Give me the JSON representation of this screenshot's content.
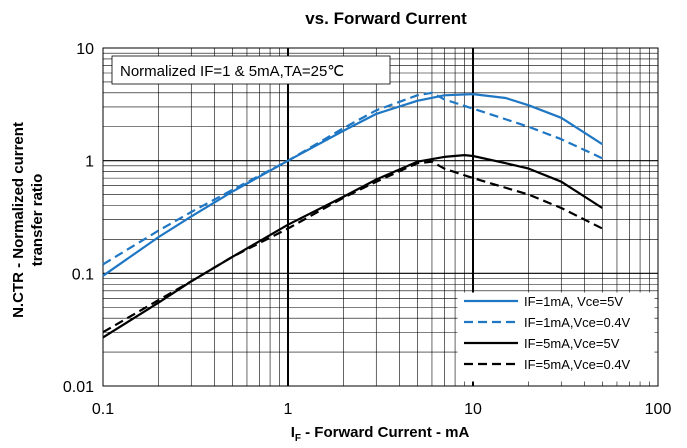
{
  "chart_data": {
    "type": "line",
    "title": "vs. Forward Current",
    "ylabel_line1": "N.CTR - Normalized current",
    "ylabel_line2": "transfer ratio",
    "xlabel_main": "I",
    "xlabel_sub": "F",
    "xlabel_rest": " - Forward Current - mA",
    "annotation": "Normalized IF=1 & 5mA,TA=25℃",
    "x_scale": "log",
    "y_scale": "log",
    "xlim": [
      0.1,
      100
    ],
    "ylim": [
      0.01,
      10
    ],
    "x_ticks": [
      {
        "value": 0.1,
        "label": "0.1"
      },
      {
        "value": 1,
        "label": "1"
      },
      {
        "value": 10,
        "label": "10"
      },
      {
        "value": 100,
        "label": "100"
      }
    ],
    "y_ticks": [
      {
        "value": 10,
        "label": "10"
      },
      {
        "value": 1,
        "label": "1"
      },
      {
        "value": 0.1,
        "label": "0.1"
      },
      {
        "value": 0.01,
        "label": "0.01"
      }
    ],
    "grid": true,
    "legend_position": "bottom-right",
    "colors": {
      "blue": "#1f77c4",
      "black": "#000000"
    },
    "series": [
      {
        "name": "IF=1mA, Vce=5V",
        "color": "#1f77c4",
        "dash": "solid",
        "points": [
          [
            0.1,
            0.095
          ],
          [
            0.2,
            0.21
          ],
          [
            0.3,
            0.32
          ],
          [
            0.5,
            0.53
          ],
          [
            1,
            1.0
          ],
          [
            2,
            1.85
          ],
          [
            3,
            2.6
          ],
          [
            5,
            3.4
          ],
          [
            7,
            3.8
          ],
          [
            10,
            3.9
          ],
          [
            15,
            3.6
          ],
          [
            20,
            3.1
          ],
          [
            30,
            2.4
          ],
          [
            50,
            1.4
          ]
        ]
      },
      {
        "name": "IF=1mA,Vce=0.4V",
        "color": "#1f77c4",
        "dash": "dashed",
        "points": [
          [
            0.1,
            0.12
          ],
          [
            0.2,
            0.24
          ],
          [
            0.3,
            0.35
          ],
          [
            0.5,
            0.55
          ],
          [
            1,
            1.0
          ],
          [
            2,
            1.95
          ],
          [
            3,
            2.8
          ],
          [
            5,
            3.8
          ],
          [
            6,
            4.0
          ],
          [
            7,
            3.5
          ],
          [
            10,
            2.9
          ],
          [
            20,
            2.0
          ],
          [
            30,
            1.55
          ],
          [
            50,
            1.05
          ]
        ]
      },
      {
        "name": "IF=5mA,Vce=5V",
        "color": "#000000",
        "dash": "solid",
        "points": [
          [
            0.1,
            0.027
          ],
          [
            0.2,
            0.055
          ],
          [
            0.3,
            0.085
          ],
          [
            0.5,
            0.14
          ],
          [
            1,
            0.27
          ],
          [
            2,
            0.48
          ],
          [
            3,
            0.68
          ],
          [
            5,
            0.98
          ],
          [
            7,
            1.08
          ],
          [
            9,
            1.12
          ],
          [
            10,
            1.1
          ],
          [
            15,
            0.95
          ],
          [
            20,
            0.85
          ],
          [
            30,
            0.65
          ],
          [
            50,
            0.38
          ]
        ]
      },
      {
        "name": "IF=5mA,Vce=0.4V",
        "color": "#000000",
        "dash": "dashed",
        "points": [
          [
            0.1,
            0.03
          ],
          [
            0.2,
            0.058
          ],
          [
            0.3,
            0.085
          ],
          [
            0.5,
            0.14
          ],
          [
            1,
            0.25
          ],
          [
            2,
            0.47
          ],
          [
            3,
            0.65
          ],
          [
            5,
            0.95
          ],
          [
            6,
            0.98
          ],
          [
            7,
            0.85
          ],
          [
            10,
            0.7
          ],
          [
            20,
            0.5
          ],
          [
            30,
            0.38
          ],
          [
            50,
            0.25
          ]
        ]
      }
    ]
  }
}
